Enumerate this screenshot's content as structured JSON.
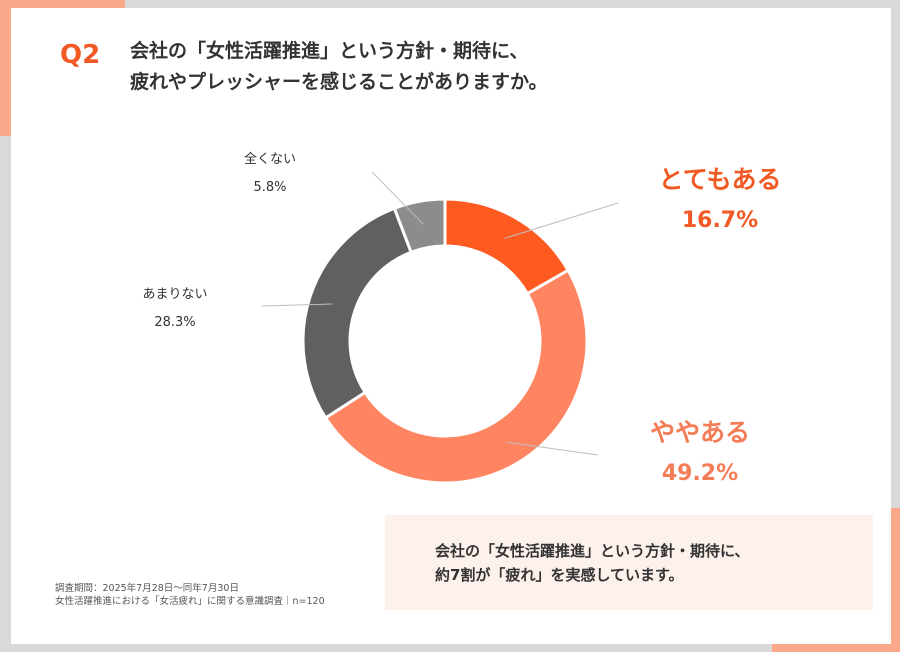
{
  "question": {
    "label": "Q2",
    "title_line1": "会社の「女性活躍推進」という方針・期待に、",
    "title_line2": "疲れやプレッシャーを感じることがありますか。"
  },
  "chart_data": {
    "type": "pie",
    "donut": true,
    "title": "会社の「女性活躍推進」という方針・期待に、疲れやプレッシャーを感じることがありますか。",
    "categories": [
      "とてもある",
      "ややある",
      "あまりない",
      "全くない"
    ],
    "values": [
      16.7,
      49.2,
      28.3,
      5.8
    ],
    "value_labels": [
      "16.7%",
      "49.2%",
      "28.3%",
      "5.8%"
    ],
    "colors": [
      "#ff5a1f",
      "#ff8562",
      "#606060",
      "#8c8c8c"
    ]
  },
  "summary": {
    "line1": "会社の「女性活躍推進」という方針・期待に、",
    "line2": "約7割が「疲れ」を実感しています。"
  },
  "footnote": {
    "line1": "調査期間：2025年7月28日～同年7月30日",
    "line2": "女性活躍推進における「女活疲れ」に関する意識調査｜n=120"
  }
}
